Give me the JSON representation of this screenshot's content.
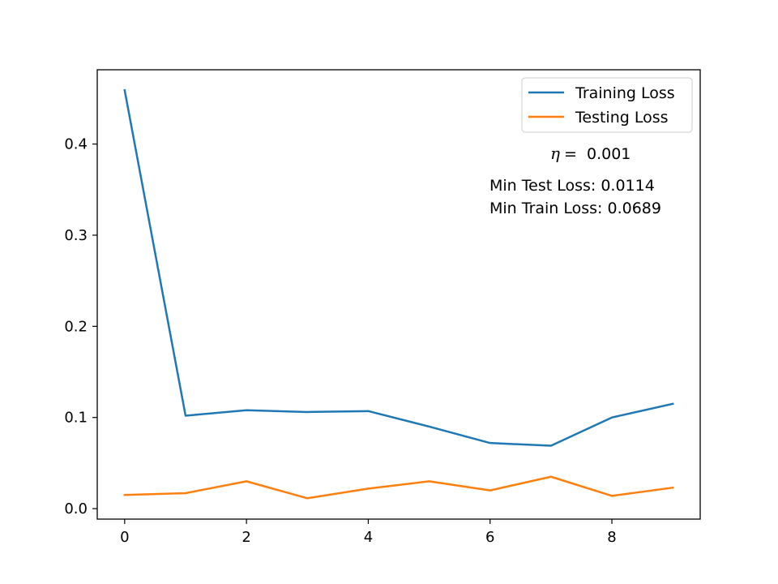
{
  "chart_data": {
    "type": "line",
    "title": "",
    "xlabel": "",
    "ylabel": "",
    "x": [
      0,
      1,
      2,
      3,
      4,
      5,
      6,
      7,
      8,
      9
    ],
    "xlim": [
      -0.45,
      9.45
    ],
    "ylim": [
      -0.0115,
      0.4815
    ],
    "xticks": [
      0,
      2,
      4,
      6,
      8
    ],
    "yticks": [
      0.0,
      0.1,
      0.2,
      0.3,
      0.4
    ],
    "xtick_labels": [
      "0",
      "2",
      "4",
      "6",
      "8"
    ],
    "ytick_labels": [
      "0.0",
      "0.1",
      "0.2",
      "0.3",
      "0.4"
    ],
    "grid": false,
    "legend_position": "top-right",
    "series": [
      {
        "name": "Training Loss",
        "color": "#1f77b4",
        "values": [
          0.459,
          0.102,
          0.108,
          0.106,
          0.107,
          0.09,
          0.072,
          0.069,
          0.1,
          0.115
        ]
      },
      {
        "name": "Testing Loss",
        "color": "#ff7f0e",
        "values": [
          0.015,
          0.017,
          0.03,
          0.0114,
          0.022,
          0.03,
          0.02,
          0.035,
          0.014,
          0.023
        ]
      }
    ],
    "annotations": {
      "eta_symbol": "η",
      "eta_equals": "=",
      "eta_value": "0.001",
      "min_test": "Min Test Loss: 0.0114",
      "min_train": "Min Train Loss: 0.0689"
    }
  }
}
